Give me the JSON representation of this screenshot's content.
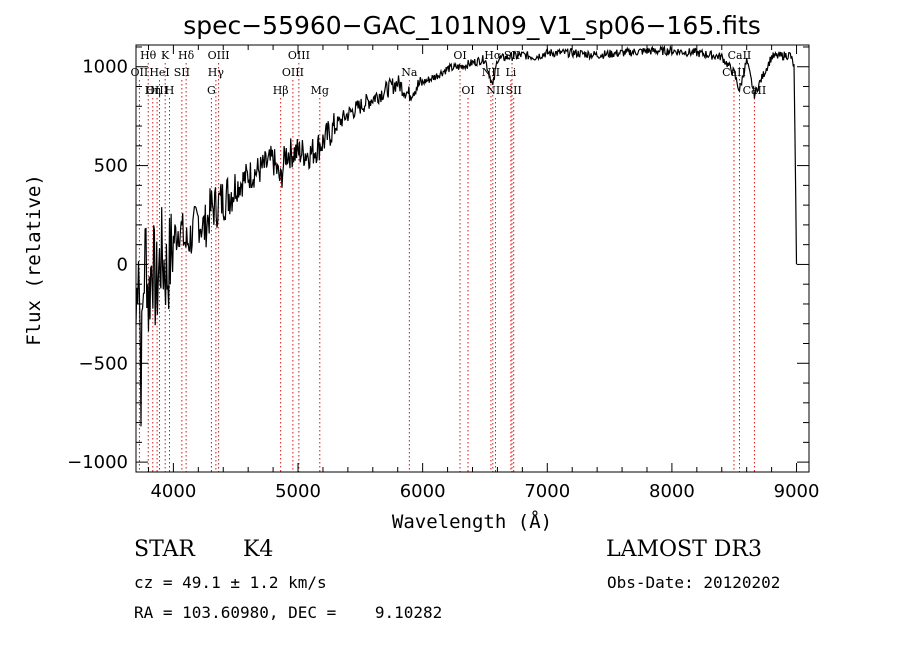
{
  "chart_data": {
    "type": "line",
    "title": "spec−55960−GAC_101N09_V1_sp06−165.fits",
    "xlabel": "Wavelength (Å)",
    "ylabel": "Flux (relative)",
    "xlim": [
      3700,
      9100
    ],
    "ylim": [
      -1050,
      1110
    ],
    "x_ticks": [
      4000,
      5000,
      6000,
      7000,
      8000,
      9000
    ],
    "x_tick_labels": [
      "4000",
      "5000",
      "6000",
      "7000",
      "8000",
      "9000"
    ],
    "y_ticks": [
      -1000,
      -500,
      0,
      500,
      1000
    ],
    "y_tick_labels": [
      "−1000",
      "−500",
      "0",
      "500",
      "1000"
    ],
    "series": [
      {
        "name": "flux",
        "x": [
          3700,
          3720,
          3740,
          3760,
          3780,
          3800,
          3830,
          3860,
          3900,
          3950,
          4000,
          4050,
          4100,
          4150,
          4200,
          4250,
          4300,
          4350,
          4400,
          4500,
          4600,
          4700,
          4800,
          4860,
          4900,
          5000,
          5100,
          5200,
          5300,
          5400,
          5500,
          5600,
          5700,
          5800,
          5890,
          5950,
          6000,
          6100,
          6200,
          6300,
          6400,
          6500,
          6563,
          6600,
          6700,
          6800,
          6900,
          7000,
          7200,
          7400,
          7600,
          7800,
          8000,
          8200,
          8400,
          8498,
          8542,
          8600,
          8662,
          8800,
          8950,
          8980,
          9000
        ],
        "y": [
          -300,
          150,
          -600,
          -100,
          100,
          -200,
          50,
          -150,
          50,
          -50,
          120,
          200,
          100,
          150,
          230,
          180,
          280,
          300,
          330,
          390,
          450,
          480,
          530,
          420,
          560,
          570,
          560,
          620,
          700,
          760,
          800,
          840,
          880,
          920,
          860,
          900,
          920,
          950,
          990,
          1000,
          1020,
          1040,
          900,
          1040,
          1050,
          1060,
          1050,
          1070,
          1070,
          1060,
          1070,
          1080,
          1080,
          1070,
          1050,
          970,
          880,
          1030,
          860,
          1050,
          1060,
          1000,
          0
        ]
      }
    ],
    "line_color": "#000000",
    "marker_color": "#cc0000",
    "spectral_lines": [
      {
        "label": "Hθ",
        "wavelength": 3798,
        "row": 1
      },
      {
        "label": "OII",
        "wavelength": 3727,
        "row": 2
      },
      {
        "label": "OIII",
        "wavelength": 3869,
        "row": 3
      },
      {
        "label": "K",
        "wavelength": 3934,
        "row": 1
      },
      {
        "label": "HeI",
        "wavelength": 3889,
        "row": 2
      },
      {
        "label": "Hη",
        "wavelength": 3835,
        "row": 3
      },
      {
        "label": "SII",
        "wavelength": 4068,
        "row": 2
      },
      {
        "label": "H",
        "wavelength": 3969,
        "row": 3
      },
      {
        "label": "Hδ",
        "wavelength": 4102,
        "row": 1
      },
      {
        "label": "OIII",
        "wavelength": 4363,
        "row": 1
      },
      {
        "label": "Hγ",
        "wavelength": 4341,
        "row": 2
      },
      {
        "label": "G",
        "wavelength": 4305,
        "row": 3
      },
      {
        "label": "OIII",
        "wavelength": 5007,
        "row": 1
      },
      {
        "label": "OIII",
        "wavelength": 4959,
        "row": 2
      },
      {
        "label": "Hβ",
        "wavelength": 4861,
        "row": 3
      },
      {
        "label": "Mg",
        "wavelength": 5175,
        "row": 3
      },
      {
        "label": "Na",
        "wavelength": 5893,
        "row": 2
      },
      {
        "label": "OI",
        "wavelength": 6300,
        "row": 1
      },
      {
        "label": "OI",
        "wavelength": 6364,
        "row": 3
      },
      {
        "label": "Hα",
        "wavelength": 6563,
        "row": 1
      },
      {
        "label": "SII",
        "wavelength": 6717,
        "row": 1
      },
      {
        "label": "NII",
        "wavelength": 6548,
        "row": 2
      },
      {
        "label": "Li",
        "wavelength": 6708,
        "row": 2
      },
      {
        "label": "NII",
        "wavelength": 6584,
        "row": 3
      },
      {
        "label": "SII",
        "wavelength": 6731,
        "row": 3
      },
      {
        "label": "CaII",
        "wavelength": 8542,
        "row": 1
      },
      {
        "label": "CaII",
        "wavelength": 8498,
        "row": 2
      },
      {
        "label": "CaII",
        "wavelength": 8662,
        "row": 3
      }
    ]
  },
  "info": {
    "class": "STAR",
    "subclass": "K4",
    "survey": "LAMOST DR3",
    "cz": "cz = 49.1 ± 1.2 km/s",
    "obs_date": "Obs-Date: 20120202",
    "radec": "RA = 103.60980, DEC =    9.10282"
  }
}
